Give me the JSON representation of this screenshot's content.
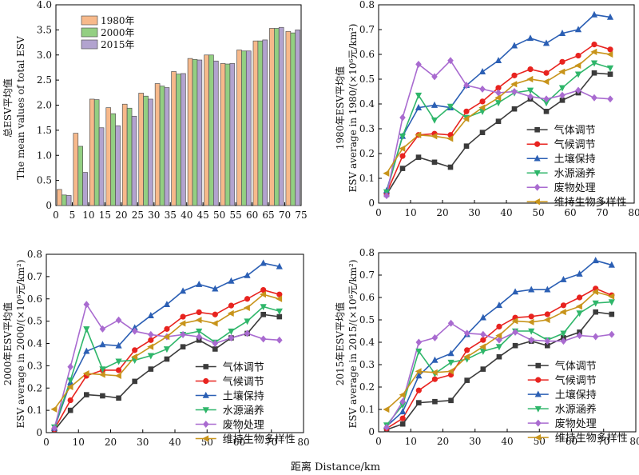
{
  "figure": {
    "x_caption": "距离 Distance/km"
  },
  "chart_data": [
    {
      "type": "bar",
      "ylabel_cn": "总ESV平均值",
      "ylabel_en": "The mean values of total ESV",
      "ylim": [
        0,
        4.0
      ],
      "yticks": [
        "0",
        "0.5",
        "1.0",
        "1.5",
        "2.0",
        "2.5",
        "3.0",
        "3.5",
        "4.0"
      ],
      "xticks": [
        "0",
        "5",
        "10",
        "15",
        "20",
        "25",
        "30",
        "35",
        "40",
        "45",
        "50",
        "55",
        "60",
        "65",
        "70",
        "75"
      ],
      "x_centers": [
        2.5,
        7.5,
        12.5,
        17.5,
        22.5,
        27.5,
        32.5,
        37.5,
        42.5,
        47.5,
        52.5,
        57.5,
        62.5,
        67.5,
        72.5
      ],
      "legend": "top-left",
      "series": [
        {
          "name": "1980年",
          "color": "#f7b98b",
          "values": [
            0.32,
            1.44,
            2.12,
            1.95,
            2.02,
            2.24,
            2.43,
            2.67,
            2.93,
            3.0,
            2.83,
            3.1,
            3.28,
            3.53,
            3.47
          ]
        },
        {
          "name": "2000年",
          "color": "#93cf82",
          "values": [
            0.21,
            1.18,
            2.11,
            1.83,
            1.94,
            2.18,
            2.38,
            2.62,
            2.91,
            3.0,
            2.82,
            3.08,
            3.28,
            3.53,
            3.44
          ]
        },
        {
          "name": "2015年",
          "color": "#b2a3cf",
          "values": [
            0.2,
            0.66,
            1.55,
            1.59,
            1.78,
            2.12,
            2.35,
            2.63,
            2.9,
            2.88,
            2.83,
            3.08,
            3.3,
            3.55,
            3.5
          ]
        }
      ]
    },
    {
      "type": "line",
      "ylabel_cn": "1980年ESV平均值",
      "ylabel_en": "ESV average in 1980/(×10⁶元/km²)",
      "ylim": [
        0,
        0.8
      ],
      "xlim": [
        0,
        80
      ],
      "yticks": [
        "0",
        "0.1",
        "0.2",
        "0.3",
        "0.4",
        "0.5",
        "0.6",
        "0.7",
        "0.8"
      ],
      "xticks": [
        "0",
        "10",
        "20",
        "30",
        "40",
        "50",
        "60",
        "70",
        "80"
      ],
      "x": [
        2.5,
        7.5,
        12.5,
        17.5,
        22.5,
        27.5,
        32.5,
        37.5,
        42.5,
        47.5,
        52.5,
        57.5,
        62.5,
        67.5,
        72.5
      ],
      "series": [
        {
          "name": "气体调节",
          "color": "#3b3b3b",
          "marker": "square",
          "values": [
            0.035,
            0.14,
            0.185,
            0.165,
            0.145,
            0.23,
            0.285,
            0.33,
            0.38,
            0.42,
            0.37,
            0.415,
            0.445,
            0.525,
            0.52
          ]
        },
        {
          "name": "气候调节",
          "color": "#e8231f",
          "marker": "circle",
          "values": [
            0.04,
            0.19,
            0.275,
            0.28,
            0.275,
            0.37,
            0.41,
            0.465,
            0.515,
            0.54,
            0.525,
            0.57,
            0.595,
            0.64,
            0.62
          ]
        },
        {
          "name": "土壤保持",
          "color": "#2b5fb4",
          "marker": "triangle-up",
          "values": [
            0.05,
            0.27,
            0.385,
            0.395,
            0.385,
            0.475,
            0.53,
            0.575,
            0.635,
            0.665,
            0.645,
            0.685,
            0.7,
            0.76,
            0.75
          ]
        },
        {
          "name": "水源涵养",
          "color": "#2fb66a",
          "marker": "triangle-down",
          "values": [
            0.045,
            0.27,
            0.435,
            0.335,
            0.39,
            0.345,
            0.37,
            0.405,
            0.445,
            0.455,
            0.405,
            0.465,
            0.52,
            0.565,
            0.545
          ]
        },
        {
          "name": "废物处理",
          "color": "#a96bd0",
          "marker": "diamond",
          "values": [
            0.03,
            0.345,
            0.56,
            0.51,
            0.575,
            0.475,
            0.46,
            0.445,
            0.45,
            0.43,
            0.42,
            0.435,
            0.455,
            0.425,
            0.42
          ]
        },
        {
          "name": "维持生物多样性",
          "color": "#c8941b",
          "marker": "triangle-left",
          "values": [
            0.12,
            0.22,
            0.275,
            0.27,
            0.26,
            0.34,
            0.385,
            0.425,
            0.48,
            0.5,
            0.49,
            0.53,
            0.555,
            0.61,
            0.6
          ]
        }
      ]
    },
    {
      "type": "line",
      "ylabel_cn": "2000年ESV平均值",
      "ylabel_en": "ESV average in 2000/(×10⁶元/km²)",
      "ylim": [
        0,
        0.8
      ],
      "xlim": [
        0,
        80
      ],
      "yticks": [
        "0",
        "0.1",
        "0.2",
        "0.3",
        "0.4",
        "0.5",
        "0.6",
        "0.7",
        "0.8"
      ],
      "xticks": [
        "0",
        "10",
        "20",
        "30",
        "40",
        "50",
        "60",
        "70",
        "80"
      ],
      "x": [
        2.5,
        7.5,
        12.5,
        17.5,
        22.5,
        27.5,
        32.5,
        37.5,
        42.5,
        47.5,
        52.5,
        57.5,
        62.5,
        67.5,
        72.5
      ],
      "series": [
        {
          "name": "气体调节",
          "color": "#3b3b3b",
          "marker": "square",
          "values": [
            0.01,
            0.1,
            0.17,
            0.165,
            0.155,
            0.23,
            0.285,
            0.33,
            0.385,
            0.415,
            0.375,
            0.425,
            0.445,
            0.53,
            0.52
          ]
        },
        {
          "name": "气候调节",
          "color": "#e8231f",
          "marker": "circle",
          "values": [
            0.015,
            0.145,
            0.255,
            0.28,
            0.28,
            0.37,
            0.415,
            0.465,
            0.52,
            0.54,
            0.53,
            0.57,
            0.6,
            0.64,
            0.62
          ]
        },
        {
          "name": "土壤保持",
          "color": "#2b5fb4",
          "marker": "triangle-up",
          "values": [
            0.02,
            0.225,
            0.365,
            0.395,
            0.39,
            0.47,
            0.525,
            0.575,
            0.635,
            0.665,
            0.645,
            0.68,
            0.705,
            0.76,
            0.745
          ]
        },
        {
          "name": "水源涵养",
          "color": "#2fb66a",
          "marker": "triangle-down",
          "values": [
            0.025,
            0.235,
            0.465,
            0.285,
            0.32,
            0.325,
            0.345,
            0.375,
            0.44,
            0.455,
            0.405,
            0.455,
            0.5,
            0.565,
            0.545
          ]
        },
        {
          "name": "废物处理",
          "color": "#a96bd0",
          "marker": "diamond",
          "values": [
            0.02,
            0.295,
            0.575,
            0.465,
            0.505,
            0.455,
            0.44,
            0.43,
            0.44,
            0.43,
            0.4,
            0.425,
            0.445,
            0.42,
            0.415
          ]
        },
        {
          "name": "维持生物多样性",
          "color": "#c8941b",
          "marker": "triangle-left",
          "values": [
            0.105,
            0.205,
            0.265,
            0.26,
            0.255,
            0.34,
            0.385,
            0.43,
            0.49,
            0.505,
            0.49,
            0.535,
            0.56,
            0.62,
            0.6
          ]
        }
      ]
    },
    {
      "type": "line",
      "ylabel_cn": "2015年ESV平均值",
      "ylabel_en": "ESV average in 2015/(×10⁶元/km²)",
      "ylim": [
        0,
        0.8
      ],
      "xlim": [
        0,
        80
      ],
      "yticks": [
        "0",
        "0.1",
        "0.2",
        "0.3",
        "0.4",
        "0.5",
        "0.6",
        "0.7",
        "0.8"
      ],
      "xticks": [
        "0",
        "10",
        "20",
        "30",
        "40",
        "50",
        "60",
        "70",
        "80"
      ],
      "x": [
        2.5,
        7.5,
        12.5,
        17.5,
        22.5,
        27.5,
        32.5,
        37.5,
        42.5,
        47.5,
        52.5,
        57.5,
        62.5,
        67.5,
        72.5
      ],
      "series": [
        {
          "name": "气体调节",
          "color": "#3b3b3b",
          "marker": "square",
          "values": [
            0.01,
            0.035,
            0.13,
            0.135,
            0.14,
            0.23,
            0.28,
            0.335,
            0.385,
            0.405,
            0.385,
            0.42,
            0.445,
            0.535,
            0.525
          ]
        },
        {
          "name": "气候调节",
          "color": "#e8231f",
          "marker": "circle",
          "values": [
            0.015,
            0.06,
            0.185,
            0.235,
            0.255,
            0.365,
            0.41,
            0.47,
            0.51,
            0.515,
            0.525,
            0.565,
            0.6,
            0.64,
            0.61
          ]
        },
        {
          "name": "土壤保持",
          "color": "#2b5fb4",
          "marker": "triangle-up",
          "values": [
            0.025,
            0.09,
            0.25,
            0.32,
            0.35,
            0.435,
            0.51,
            0.565,
            0.625,
            0.635,
            0.635,
            0.68,
            0.705,
            0.765,
            0.745
          ]
        },
        {
          "name": "水源涵养",
          "color": "#2fb66a",
          "marker": "triangle-down",
          "values": [
            0.03,
            0.12,
            0.36,
            0.26,
            0.31,
            0.325,
            0.36,
            0.38,
            0.45,
            0.45,
            0.41,
            0.44,
            0.53,
            0.575,
            0.58
          ]
        },
        {
          "name": "废物处理",
          "color": "#a96bd0",
          "marker": "diamond",
          "values": [
            0.02,
            0.135,
            0.4,
            0.42,
            0.485,
            0.44,
            0.435,
            0.41,
            0.445,
            0.41,
            0.405,
            0.405,
            0.43,
            0.425,
            0.435
          ]
        },
        {
          "name": "维持生物多样性",
          "color": "#c8941b",
          "marker": "triangle-left",
          "values": [
            0.1,
            0.165,
            0.27,
            0.265,
            0.27,
            0.335,
            0.38,
            0.43,
            0.495,
            0.49,
            0.5,
            0.535,
            0.56,
            0.625,
            0.605
          ]
        }
      ]
    }
  ]
}
